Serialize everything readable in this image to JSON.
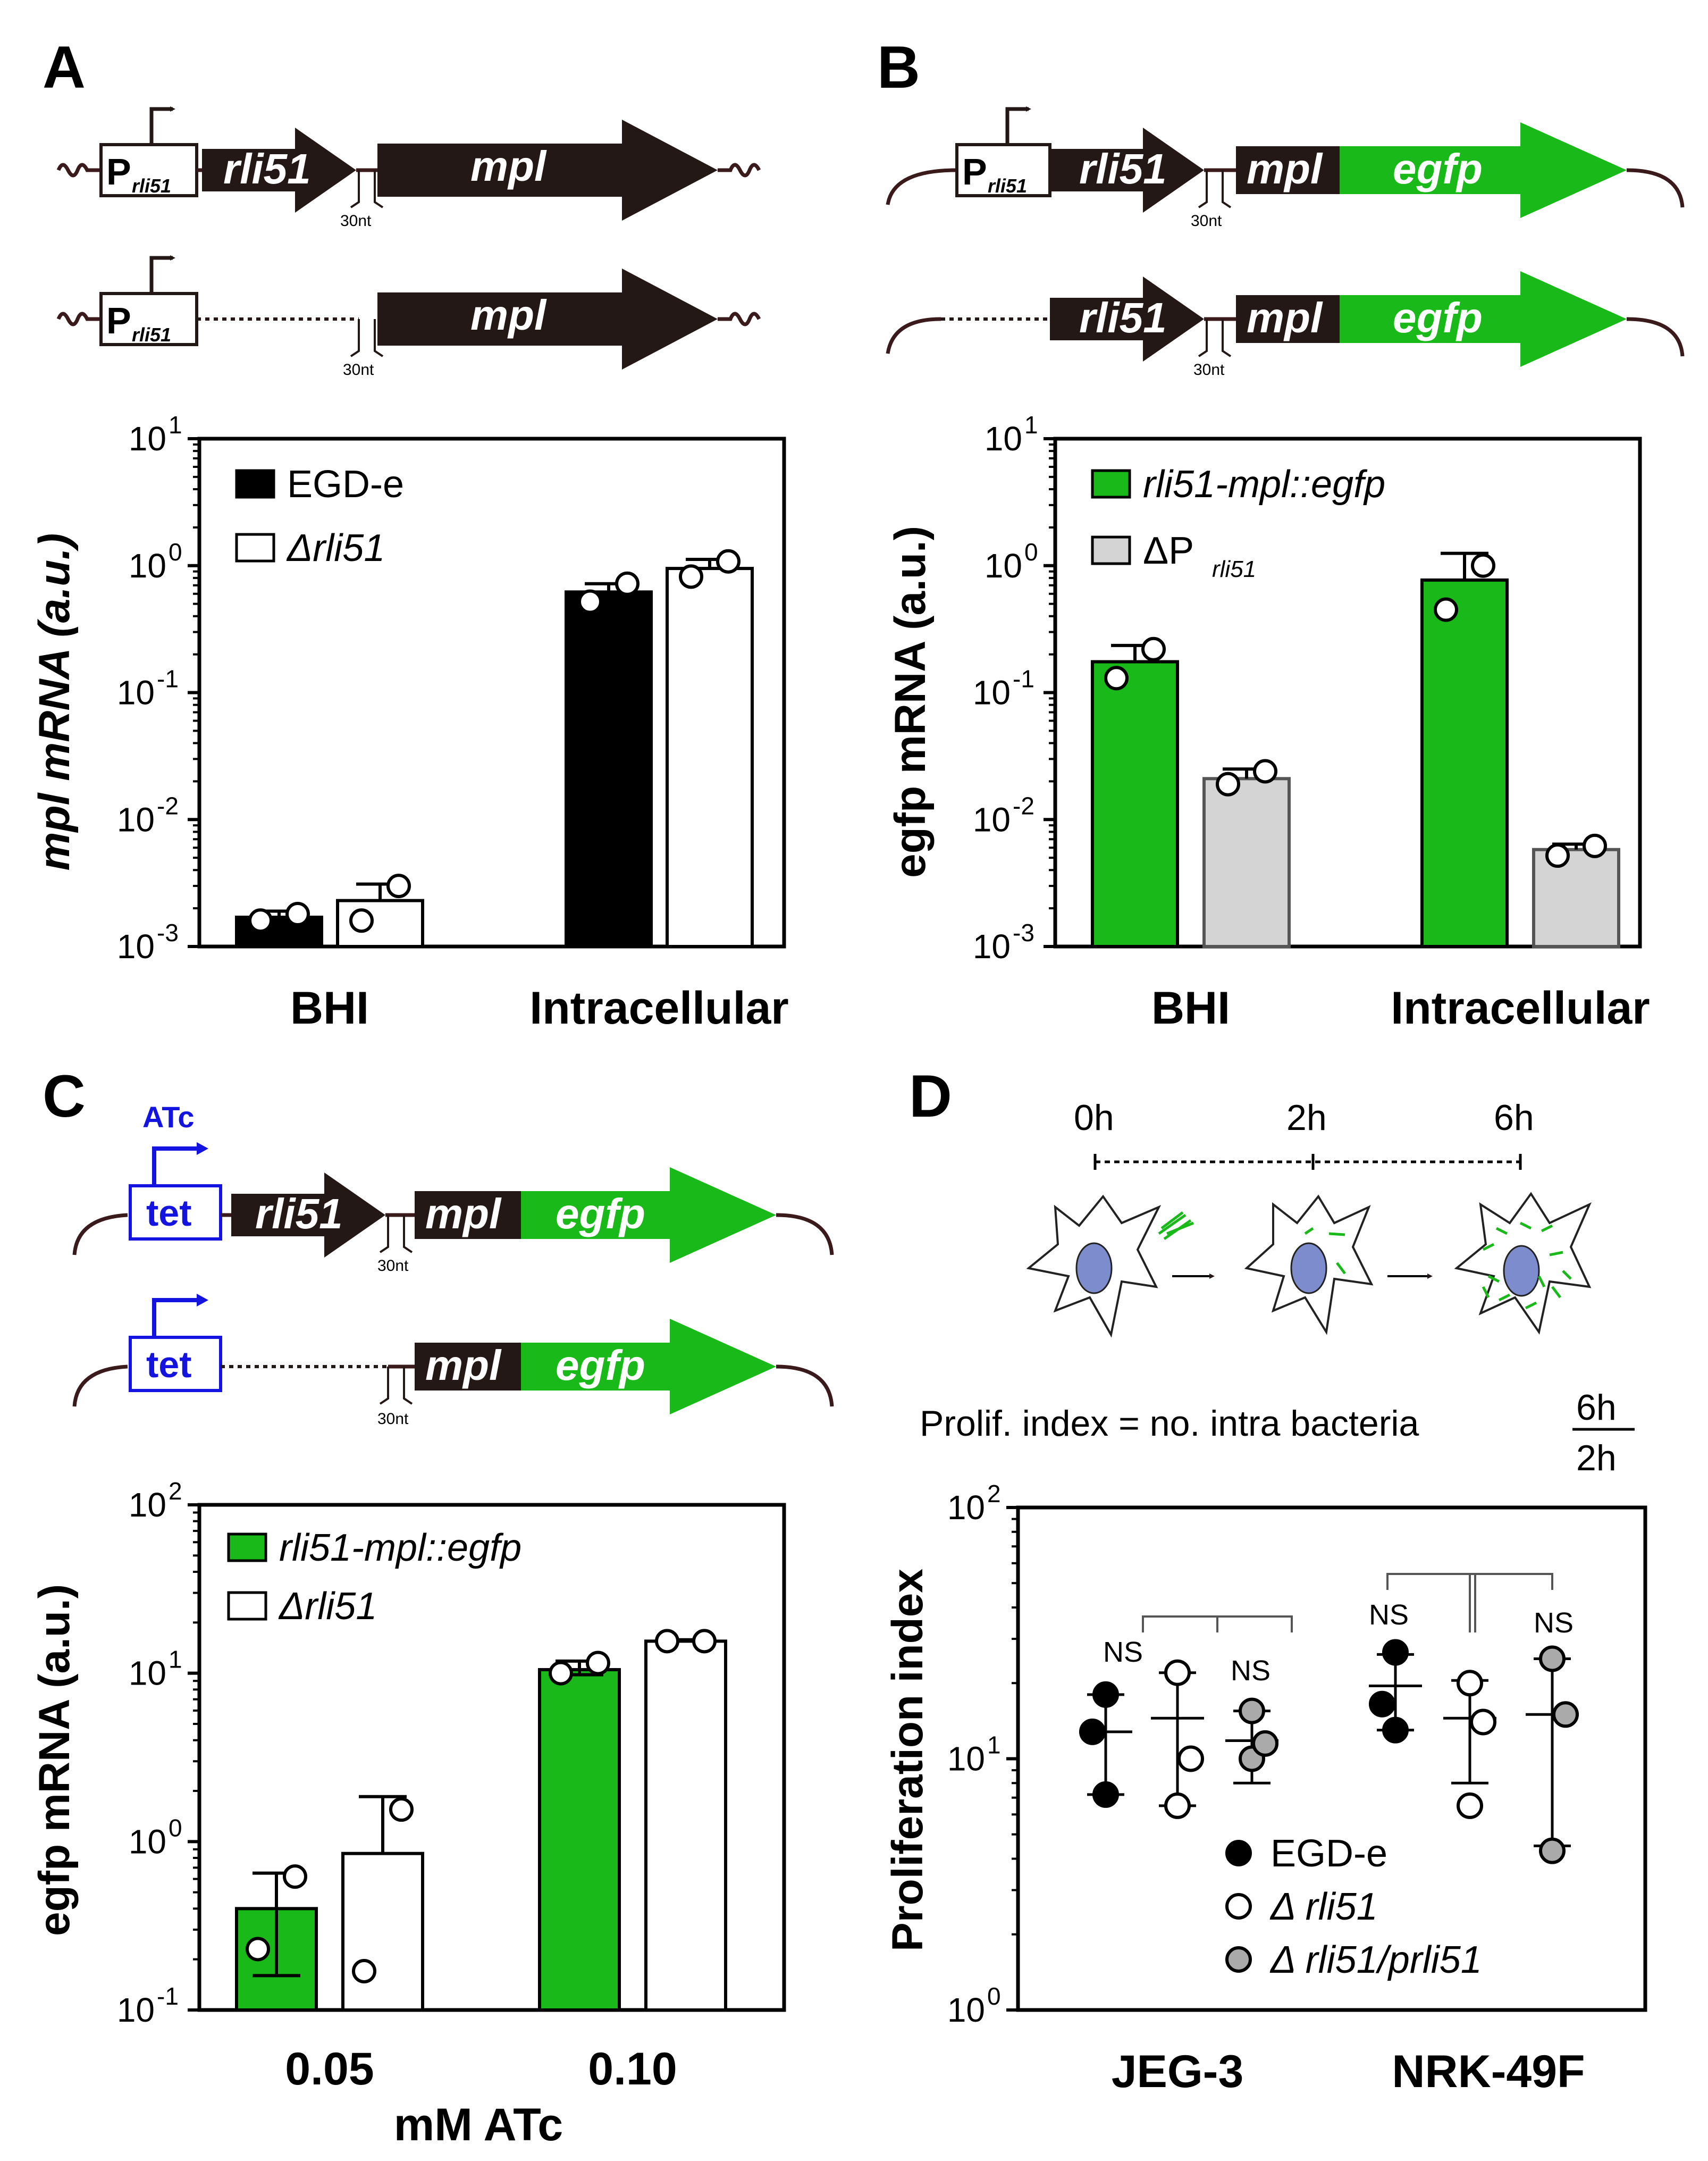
{
  "panels": {
    "A": {
      "label": "A",
      "constructs": [
        {
          "promoter": "P",
          "promoter_sub": "rli51",
          "genes": [
            "rli51",
            "mpl"
          ],
          "spacer": "30nt"
        },
        {
          "promoter": "P",
          "promoter_sub": "rli51",
          "genes": [
            "mpl"
          ],
          "spacer": "30nt"
        }
      ]
    },
    "B": {
      "label": "B",
      "constructs": [
        {
          "promoter": "P",
          "promoter_sub": "rli51",
          "genes": [
            "rli51",
            "mpl",
            "egfp"
          ],
          "spacer": "30nt"
        },
        {
          "genes": [
            "rli51",
            "mpl",
            "egfp"
          ],
          "spacer": "30nt"
        }
      ]
    },
    "C": {
      "label": "C",
      "inducer": "ATc",
      "constructs": [
        {
          "promoter": "tet",
          "genes": [
            "rli51",
            "mpl",
            "egfp"
          ],
          "spacer": "30nt"
        },
        {
          "promoter": "tet",
          "genes": [
            "mpl",
            "egfp"
          ],
          "spacer": "30nt"
        }
      ]
    },
    "D": {
      "label": "D",
      "timepoints": [
        "0h",
        "2h",
        "6h"
      ],
      "formula_text": "Prolif. index = no. intra bacteria",
      "formula_num": "6h",
      "formula_den": "2h"
    }
  },
  "colors": {
    "green": "#19b919",
    "black": "#000000",
    "grey": "#d4d4d4",
    "dna": "#3a1a1a",
    "gene": "#231815",
    "tet": "#1414e0",
    "nucleus": "#7d8ccc"
  },
  "chart_data": [
    {
      "type": "bar",
      "panel": "A",
      "scale": "log",
      "ylim": [
        0.001,
        10
      ],
      "yticks": [
        "10^-3",
        "10^-2",
        "10^-1",
        "10^0",
        "10^1"
      ],
      "ylabel": "mpl mRNA (a.u.)",
      "categories": [
        "BHI",
        "Intracellular"
      ],
      "series": [
        {
          "name": "EGD-e",
          "values": [
            0.0017,
            0.62
          ],
          "error_high": [
            0.0019,
            0.72
          ],
          "points": [
            [
              0.0016,
              0.0018
            ],
            [
              0.52,
              0.72
            ]
          ]
        },
        {
          "name": "Δrli51",
          "values": [
            0.0023,
            0.95
          ],
          "error_high": [
            0.0031,
            1.12
          ],
          "points": [
            [
              0.0016,
              0.003
            ],
            [
              0.82,
              1.08
            ]
          ]
        }
      ]
    },
    {
      "type": "bar",
      "panel": "B",
      "scale": "log",
      "ylim": [
        0.001,
        10
      ],
      "yticks": [
        "10^-3",
        "10^-2",
        "10^-1",
        "10^0",
        "10^1"
      ],
      "ylabel": "egfp mRNA (a.u.)",
      "categories": [
        "BHI",
        "Intracellular"
      ],
      "series": [
        {
          "name": "rli51-mpl::egfp",
          "values": [
            0.175,
            0.77
          ],
          "error_high": [
            0.235,
            1.25
          ],
          "points": [
            [
              0.13,
              0.22
            ],
            [
              0.45,
              1.0
            ]
          ]
        },
        {
          "name": "ΔP",
          "name_sub": "rli51",
          "values": [
            0.021,
            0.0058
          ],
          "error_high": [
            0.025,
            0.0064
          ],
          "points": [
            [
              0.019,
              0.024
            ],
            [
              0.0052,
              0.0062
            ]
          ]
        }
      ]
    },
    {
      "type": "bar",
      "panel": "C",
      "scale": "log",
      "ylim": [
        0.1,
        100
      ],
      "yticks": [
        "10^-1",
        "10^0",
        "10^1",
        "10^2"
      ],
      "ylabel": "egfp mRNA (a.u.)",
      "xlabel": "mM ATc",
      "categories": [
        "0.05",
        "0.10"
      ],
      "series": [
        {
          "name": "rli51-mpl::egfp",
          "values": [
            0.4,
            10.5
          ],
          "error_high": [
            0.65,
            11.8
          ],
          "error_low": [
            0.16,
            9.8
          ],
          "points": [
            [
              0.23,
              0.62
            ],
            [
              10.0,
              11.5
            ]
          ]
        },
        {
          "name": "Δrli51",
          "values": [
            0.85,
            15.5
          ],
          "error_high": [
            1.85,
            15.8
          ],
          "points": [
            [
              0.17,
              1.55
            ],
            [
              15.5,
              15.5
            ]
          ]
        }
      ]
    },
    {
      "type": "scatter",
      "panel": "D",
      "scale": "log",
      "ylim": [
        1,
        100
      ],
      "yticks": [
        "10^0",
        "10^1",
        "10^2"
      ],
      "ylabel": "Proliferation index",
      "categories": [
        "JEG-3",
        "NRK-49F"
      ],
      "annotations": [
        "NS",
        "NS",
        "NS",
        "NS"
      ],
      "series": [
        {
          "name": "EGD-e",
          "mean": [
            12.8,
            19.5
          ],
          "sd_high": [
            18.0,
            26.0
          ],
          "sd_low": [
            7.2,
            13.0
          ],
          "points": [
            [
              7.2,
              12.8,
              18.0
            ],
            [
              13.0,
              16.5,
              26.5
            ]
          ]
        },
        {
          "name": "Δ rli51",
          "mean": [
            14.5,
            14.5
          ],
          "sd_high": [
            22.0,
            20.5
          ],
          "sd_low": [
            6.5,
            8.0
          ],
          "points": [
            [
              6.5,
              10.0,
              22.0
            ],
            [
              6.5,
              14.0,
              20.0
            ]
          ]
        },
        {
          "name": "Δ rli51/prli51",
          "mean": [
            11.8,
            15.0
          ],
          "sd_high": [
            15.5,
            25.0
          ],
          "sd_low": [
            8.0,
            4.5
          ],
          "points": [
            [
              10.0,
              11.5,
              15.5
            ],
            [
              4.3,
              15.0,
              25.0
            ]
          ]
        }
      ]
    }
  ]
}
